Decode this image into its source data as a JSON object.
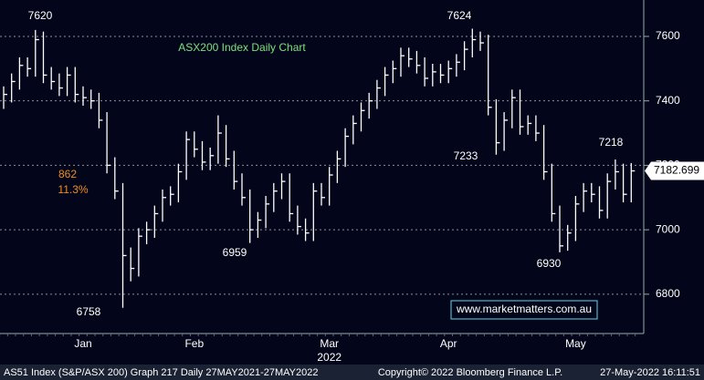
{
  "chart_data": {
    "type": "hlc",
    "title": "ASX200 Index Daily Chart",
    "categories": [
      null,
      null,
      null,
      null,
      null,
      null,
      null,
      null,
      null,
      null,
      "Jan",
      null,
      null,
      null,
      null,
      null,
      null,
      null,
      null,
      null,
      null,
      null,
      null,
      null,
      "Feb",
      null,
      null,
      null,
      null,
      null,
      null,
      null,
      null,
      null,
      null,
      null,
      null,
      null,
      null,
      null,
      null,
      "Mar",
      null,
      null,
      null,
      null,
      null,
      null,
      null,
      null,
      null,
      null,
      null,
      null,
      null,
      null,
      "Apr",
      null,
      null,
      null,
      null,
      null,
      null,
      null,
      null,
      null,
      null,
      null,
      null,
      null,
      null,
      null,
      "May",
      null,
      null,
      null,
      null,
      null,
      null,
      null
    ],
    "x_sublabel": "2022",
    "series": [
      {
        "name": "AS51 Index",
        "color": "#ffffff",
        "high": [
          7445,
          7485,
          7535,
          7535,
          7620,
          7615,
          7505,
          7485,
          7505,
          7505,
          7445,
          7435,
          7425,
          7365,
          7225,
          7145,
          6945,
          7005,
          7025,
          7075,
          7125,
          7135,
          7205,
          7305,
          7305,
          7275,
          7255,
          7355,
          7325,
          7245,
          7175,
          7125,
          7055,
          7105,
          7145,
          7175,
          7175,
          7075,
          7035,
          7145,
          7145,
          7195,
          7245,
          7315,
          7355,
          7395,
          7425,
          7465,
          7505,
          7525,
          7565,
          7565,
          7555,
          7535,
          7515,
          7515,
          7525,
          7545,
          7585,
          7624,
          7615,
          7605,
          7405,
          7365,
          7435,
          7435,
          7355,
          7355,
          7325,
          7205,
          7075,
          7015,
          7105,
          7145,
          7145,
          7135,
          7175,
          7218,
          7205,
          7207
        ],
        "low": [
          7375,
          7395,
          7435,
          7475,
          7475,
          7455,
          7435,
          7415,
          7415,
          7395,
          7385,
          7375,
          7315,
          7175,
          7095,
          6758,
          6840,
          6855,
          6955,
          6975,
          7025,
          7075,
          7085,
          7155,
          7225,
          7185,
          7185,
          7205,
          7195,
          7125,
          7075,
          6959,
          6975,
          7005,
          7055,
          7095,
          7025,
          6985,
          6965,
          6965,
          7075,
          7075,
          7145,
          7195,
          7265,
          7305,
          7345,
          7375,
          7415,
          7455,
          7475,
          7505,
          7485,
          7445,
          7445,
          7455,
          7455,
          7475,
          7495,
          7535,
          7555,
          7355,
          7233,
          7245,
          7315,
          7295,
          7295,
          7275,
          7155,
          7025,
          6930,
          6935,
          6965,
          7055,
          7085,
          7035,
          7035,
          7125,
          7085,
          7085
        ],
        "close": [
          7420,
          7460,
          7510,
          7500,
          7590,
          7480,
          7460,
          7440,
          7480,
          7420,
          7410,
          7400,
          7340,
          7200,
          7120,
          6920,
          6880,
          6980,
          7000,
          7050,
          7100,
          7110,
          7180,
          7280,
          7250,
          7210,
          7230,
          7300,
          7220,
          7150,
          7100,
          7000,
          7030,
          7080,
          7120,
          7150,
          7050,
          7010,
          6990,
          7120,
          7100,
          7170,
          7220,
          7290,
          7330,
          7370,
          7400,
          7440,
          7480,
          7500,
          7540,
          7530,
          7510,
          7470,
          7490,
          7480,
          7500,
          7520,
          7560,
          7590,
          7580,
          7380,
          7270,
          7340,
          7410,
          7320,
          7330,
          7300,
          7180,
          7050,
          6950,
          6990,
          7080,
          7120,
          7110,
          7060,
          7150,
          7180,
          7110,
          7182.699
        ]
      }
    ],
    "ylim": [
      6678,
      7713
    ],
    "yticks": [
      6800,
      7000,
      7200,
      7400,
      7600
    ],
    "grid": true,
    "annotations": [
      "7620",
      "7624",
      "7233",
      "7218",
      "6959",
      "6930",
      "6758",
      "862",
      "11.3%"
    ],
    "website": "www.marketmatters.com.au",
    "footer": [
      "AS51 Index (S&P/ASX 200) Graph 217  Daily 27MAY2021-27MAY2022",
      "Copyright© 2022 Bloomberg Finance L.P.",
      "27-May-2022 16:11:51"
    ]
  }
}
